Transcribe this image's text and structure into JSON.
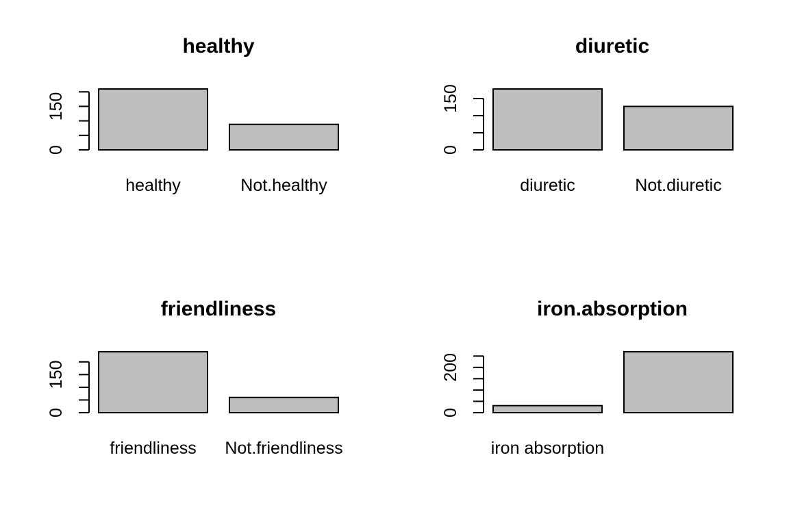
{
  "chart_data": [
    {
      "type": "bar",
      "title": "healthy",
      "categories": [
        "healthy",
        "Not.healthy"
      ],
      "values": [
        210,
        88
      ],
      "ylim": [
        0,
        210
      ],
      "yticks": [
        0,
        50,
        100,
        150,
        200
      ],
      "ytick_labels": [
        "0",
        "150"
      ],
      "bar_color": "#bebebe"
    },
    {
      "type": "bar",
      "title": "diuretic",
      "categories": [
        "diuretic",
        "Not.diuretic"
      ],
      "values": [
        178,
        127
      ],
      "ylim": [
        0,
        178
      ],
      "yticks": [
        0,
        50,
        100,
        150
      ],
      "ytick_labels": [
        "0",
        "150"
      ],
      "bar_color": "#bebebe"
    },
    {
      "type": "bar",
      "title": "friendliness",
      "categories": [
        "friendliness",
        "Not.friendliness"
      ],
      "values": [
        240,
        60
      ],
      "ylim": [
        0,
        240
      ],
      "yticks": [
        0,
        50,
        100,
        150,
        200
      ],
      "ytick_labels": [
        "0",
        "150"
      ],
      "bar_color": "#bebebe"
    },
    {
      "type": "bar",
      "title": "iron.absorption",
      "categories": [
        "iron absorption",
        ""
      ],
      "values": [
        31,
        269
      ],
      "ylim": [
        0,
        269
      ],
      "yticks": [
        0,
        50,
        100,
        150,
        200,
        250
      ],
      "ytick_labels": [
        "0",
        "200"
      ],
      "bar_color": "#bebebe"
    }
  ]
}
